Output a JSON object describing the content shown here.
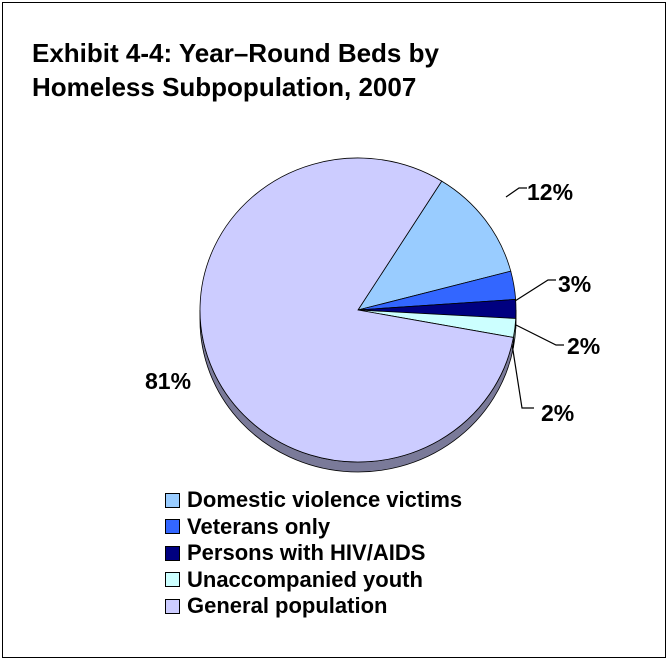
{
  "chart_data": {
    "type": "pie",
    "title_lines": [
      "Exhibit 4-4: Year–Round Beds by",
      "Homeless Subpopulation, 2007"
    ],
    "slices": [
      {
        "name": "Domestic violence victims",
        "value": 12,
        "label": "12%",
        "color": "#99ccff"
      },
      {
        "name": "Veterans only",
        "value": 3,
        "label": "3%",
        "color": "#3366ff"
      },
      {
        "name": "Persons with HIV/AIDS",
        "value": 2,
        "label": "2%",
        "color": "#000080"
      },
      {
        "name": "Unaccompanied youth",
        "value": 2,
        "label": "2%",
        "color": "#ccffff"
      },
      {
        "name": "General population",
        "value": 81,
        "label": "81%",
        "color": "#ccccff"
      }
    ],
    "legend_position": "bottom",
    "style": "3d-pie"
  }
}
